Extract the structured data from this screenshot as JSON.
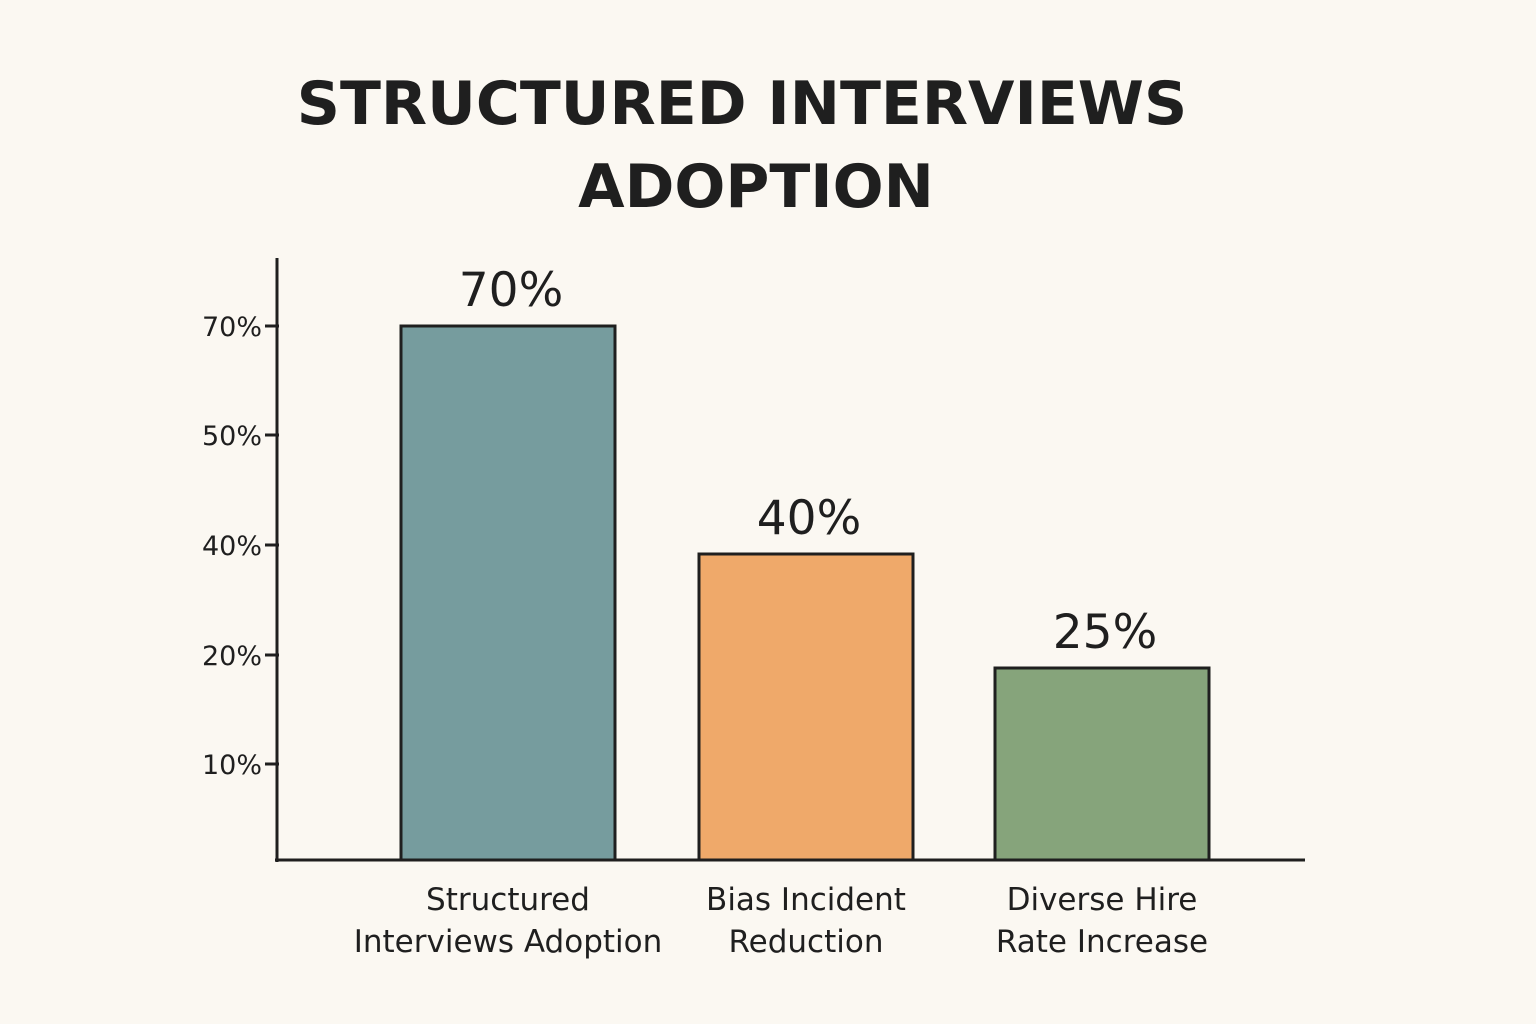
{
  "chart_data": {
    "type": "bar",
    "title_lines": [
      "STRUCTURED INTERVIEWS",
      "ADOPTION"
    ],
    "categories": [
      [
        "Structured",
        "Interviews Adoption"
      ],
      [
        "Bias Incident",
        "Reduction"
      ],
      [
        "Diverse Hire",
        "Rate Increase"
      ]
    ],
    "values": [
      70,
      40,
      25
    ],
    "value_labels": [
      "70%",
      "40%",
      "25%"
    ],
    "colors": [
      "#769c9e",
      "#efa96a",
      "#86a47b"
    ],
    "y_ticks": [
      {
        "value": 70,
        "label": "70%"
      },
      {
        "value": 50,
        "label": "50%"
      },
      {
        "value": 40,
        "label": "40%"
      },
      {
        "value": 20,
        "label": "20%"
      },
      {
        "value": 10,
        "label": "10%"
      }
    ],
    "ylim": [
      0,
      75
    ],
    "grid": false,
    "legend": "none",
    "xlabel": "",
    "ylabel": ""
  }
}
